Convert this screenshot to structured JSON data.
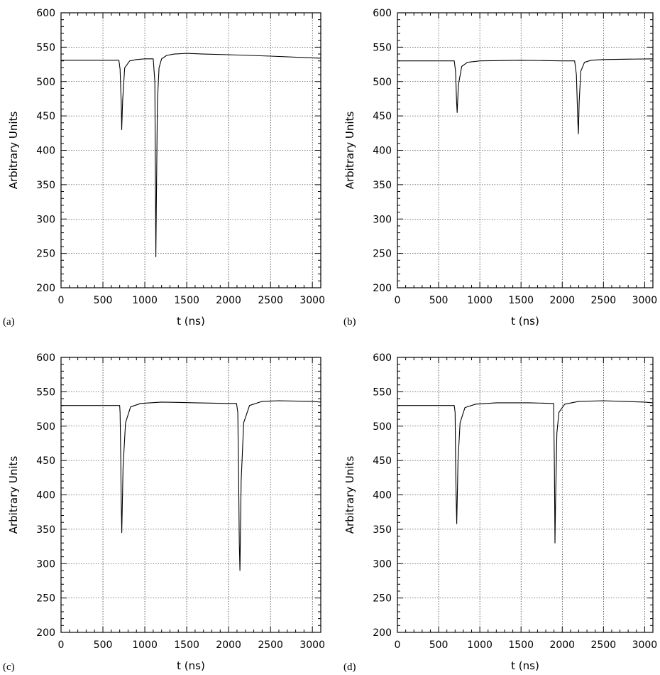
{
  "chart_data": [
    {
      "type": "line",
      "panel_label": "(a)",
      "xlabel": "t (ns)",
      "ylabel": "Arbitrary Units",
      "xlim": [
        0,
        3100
      ],
      "ylim": [
        200,
        600
      ],
      "x_ticks": [
        0,
        500,
        1000,
        1500,
        2000,
        2500,
        3000
      ],
      "y_ticks": [
        200,
        250,
        300,
        350,
        400,
        450,
        500,
        550,
        600
      ],
      "grid": true,
      "series": [
        {
          "x": [
            0,
            690,
            705,
            718,
            724,
            735,
            760,
            820,
            900,
            1000,
            1100,
            1120,
            1126,
            1132,
            1140,
            1150,
            1170,
            1200,
            1260,
            1350,
            1500,
            1700,
            2000,
            2500,
            3100
          ],
          "y": [
            531,
            531,
            518,
            470,
            430,
            472,
            520,
            530,
            532,
            533,
            533,
            500,
            380,
            245,
            350,
            470,
            520,
            533,
            538,
            540,
            541,
            540,
            539,
            537,
            534
          ]
        }
      ]
    },
    {
      "type": "line",
      "panel_label": "(b)",
      "xlabel": "t (ns)",
      "ylabel": "Arbitrary Units",
      "xlim": [
        0,
        3100
      ],
      "ylim": [
        200,
        600
      ],
      "x_ticks": [
        0,
        500,
        1000,
        1500,
        2000,
        2500,
        3000
      ],
      "y_ticks": [
        200,
        250,
        300,
        350,
        400,
        450,
        500,
        550,
        600
      ],
      "grid": true,
      "series": [
        {
          "x": [
            0,
            690,
            705,
            718,
            725,
            740,
            780,
            850,
            1000,
            1500,
            2000,
            2150,
            2172,
            2190,
            2196,
            2205,
            2225,
            2270,
            2350,
            2500,
            3100
          ],
          "y": [
            530,
            530,
            515,
            470,
            455,
            495,
            522,
            528,
            530,
            531,
            530,
            530,
            510,
            440,
            424,
            470,
            515,
            528,
            531,
            532,
            533
          ]
        }
      ]
    },
    {
      "type": "line",
      "panel_label": "(c)",
      "xlabel": "t (ns)",
      "ylabel": "Arbitrary Units",
      "xlim": [
        0,
        3100
      ],
      "ylim": [
        200,
        600
      ],
      "x_ticks": [
        0,
        500,
        1000,
        1500,
        2000,
        2500,
        3000
      ],
      "y_ticks": [
        200,
        250,
        300,
        350,
        400,
        450,
        500,
        550,
        600
      ],
      "grid": true,
      "series": [
        {
          "x": [
            0,
            700,
            705,
            712,
            718,
            725,
            740,
            770,
            830,
            950,
            1200,
            1600,
            2000,
            2095,
            2110,
            2120,
            2128,
            2135,
            2150,
            2180,
            2250,
            2400,
            2600,
            3000,
            3100
          ],
          "y": [
            530,
            530,
            520,
            460,
            390,
            345,
            440,
            505,
            528,
            533,
            535,
            534,
            533,
            533,
            520,
            420,
            330,
            290,
            420,
            505,
            530,
            536,
            537,
            536,
            535
          ]
        }
      ]
    },
    {
      "type": "line",
      "panel_label": "(d)",
      "xlabel": "t (ns)",
      "ylabel": "Arbitrary Units",
      "xlim": [
        0,
        3100
      ],
      "ylim": [
        200,
        600
      ],
      "x_ticks": [
        0,
        500,
        1000,
        1500,
        2000,
        2500,
        3000
      ],
      "y_ticks": [
        200,
        250,
        300,
        350,
        400,
        450,
        500,
        550,
        600
      ],
      "grid": true,
      "series": [
        {
          "x": [
            0,
            690,
            700,
            708,
            714,
            720,
            735,
            760,
            820,
            950,
            1200,
            1600,
            1880,
            1895,
            1905,
            1912,
            1920,
            1935,
            1960,
            2030,
            2200,
            2500,
            3000,
            3100
          ],
          "y": [
            530,
            530,
            520,
            430,
            390,
            358,
            450,
            505,
            527,
            532,
            534,
            534,
            533,
            533,
            440,
            330,
            400,
            490,
            520,
            532,
            536,
            537,
            535,
            534
          ]
        }
      ]
    }
  ]
}
